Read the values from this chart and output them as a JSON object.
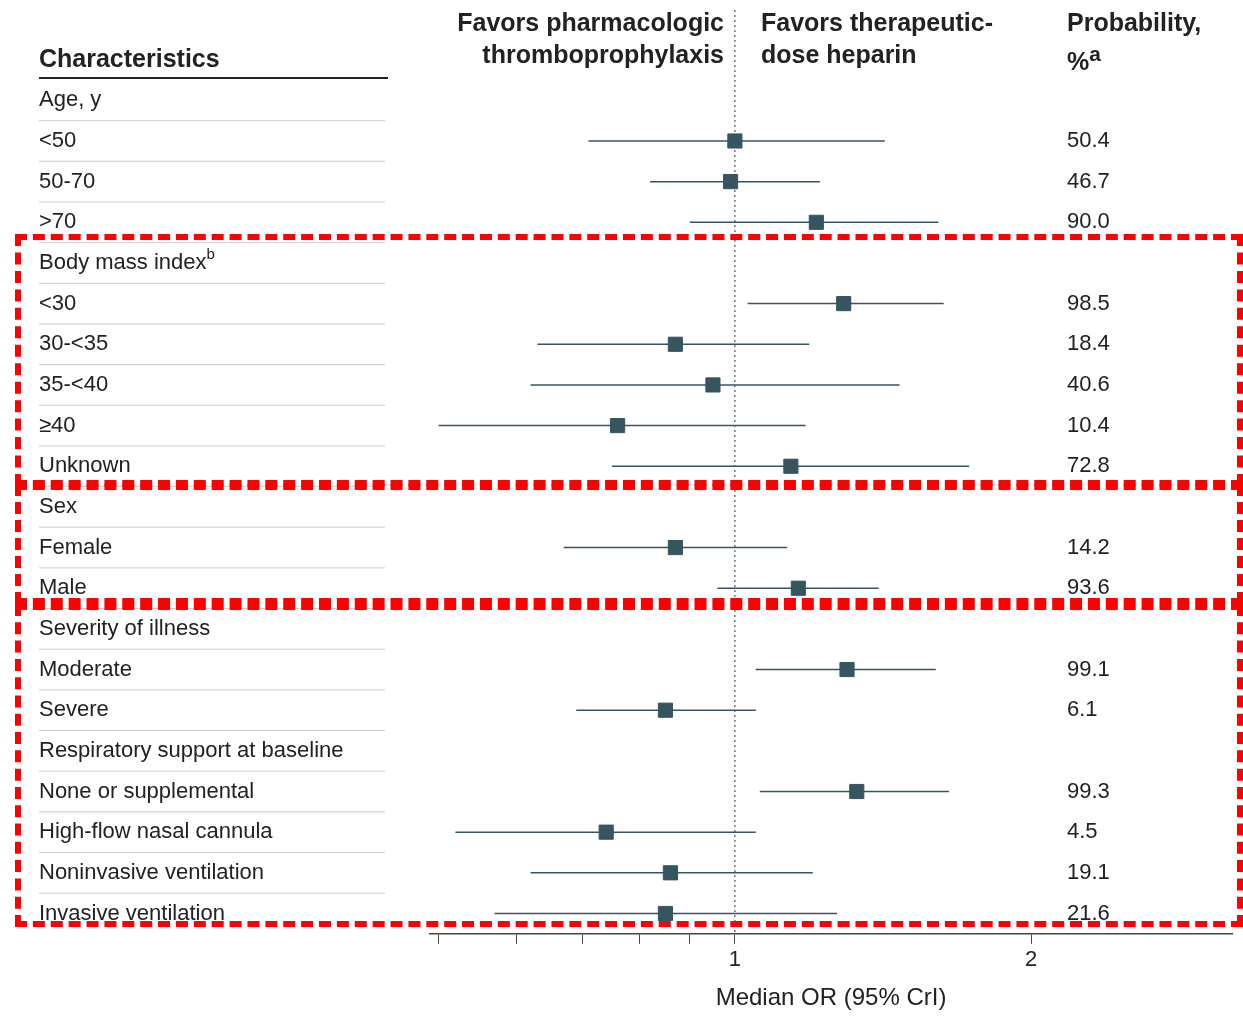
{
  "chart_data": {
    "type": "scatter",
    "orientation": "horizontal",
    "ylabel": "Characteristics",
    "xlabel": "Median OR (95% CrI)",
    "categories": [
      "Age, y",
      "<50",
      "50-70",
      ">70",
      "Body mass index$^{b}$",
      "<30",
      "30-<35",
      "35-<40",
      "≥40",
      "Unknown",
      "Sex",
      "Female",
      "Male",
      "Severity of illness",
      "Moderate",
      "Severe",
      "Respiratory support at baseline",
      "None or supplemental",
      "High-flow nasal cannula",
      "Noninvasive ventilation",
      "Invasive ventilation"
    ],
    "values": [
      null,
      1.0,
      0.99,
      1.21,
      null,
      1.29,
      0.87,
      0.95,
      0.76,
      1.14,
      null,
      0.87,
      1.16,
      null,
      1.3,
      0.85,
      null,
      1.33,
      0.74,
      0.86,
      0.85
    ],
    "errors": [
      null,
      [
        0.71,
        1.42
      ],
      [
        0.82,
        1.22
      ],
      [
        0.9,
        1.61
      ],
      null,
      [
        1.03,
        1.63
      ],
      [
        0.63,
        1.19
      ],
      [
        0.62,
        1.47
      ],
      [
        0.5,
        1.18
      ],
      [
        0.75,
        1.73
      ],
      null,
      [
        0.67,
        1.13
      ],
      [
        0.96,
        1.4
      ],
      null,
      [
        1.05,
        1.6
      ],
      [
        0.69,
        1.05
      ],
      null,
      [
        1.06,
        1.65
      ],
      [
        0.52,
        1.05
      ],
      [
        0.62,
        1.2
      ],
      [
        0.57,
        1.27
      ]
    ],
    "color": "#35555f",
    "marker": "square",
    "log": "x",
    "grid": false,
    "legend": false,
    "xlim": [
      0.49,
      3.2
    ],
    "xticks": [
      {
        "value": 0.5,
        "label": null
      },
      {
        "value": 0.6,
        "label": null
      },
      {
        "value": 0.7,
        "label": null
      },
      {
        "value": 0.8,
        "label": null
      },
      {
        "value": 0.9,
        "label": null
      },
      1,
      2
    ],
    "ref_lines": [
      {
        "axis": "x",
        "value": 1,
        "line_style": "dotted",
        "color": "#555555"
      }
    ],
    "annotations": [
      "Favors pharmacologic thromboprophylaxis",
      "Favors therapeutic-dose heparin",
      "Probability, %$^{a}$",
      "50.4",
      "46.7",
      "90.0",
      "98.5",
      "18.4",
      "40.6",
      "10.4",
      "72.8",
      "14.2",
      "93.6",
      "99.1",
      "6.1",
      "99.3",
      "4.5",
      "19.1",
      "21.6"
    ]
  }
}
